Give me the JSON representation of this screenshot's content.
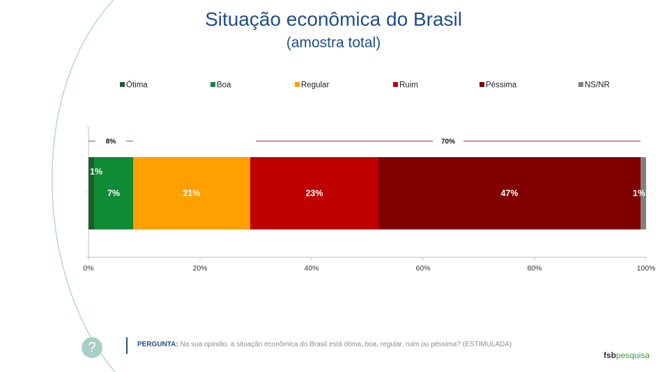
{
  "chart_data": {
    "type": "bar",
    "orientation": "horizontal",
    "stacked": true,
    "title": "Situação econômica do Brasil",
    "subtitle": "(amostra total)",
    "series": [
      {
        "name": "Ótima",
        "value": 1,
        "label": "1%",
        "color": "#1e5c2e"
      },
      {
        "name": "Boa",
        "value": 7,
        "label": "7%",
        "color": "#0f8a35"
      },
      {
        "name": "Regular",
        "value": 21,
        "label": "21%",
        "color": "#ff9f00"
      },
      {
        "name": "Ruim",
        "value": 23,
        "label": "23%",
        "color": "#c00000"
      },
      {
        "name": "Péssima",
        "value": 47,
        "label": "47%",
        "color": "#800000"
      },
      {
        "name": "NS/NR",
        "value": 1,
        "label": "1%",
        "color": "#808080"
      }
    ],
    "xlim": [
      0,
      100
    ],
    "xticks": [
      "0%",
      "20%",
      "40%",
      "60%",
      "80%",
      "100%"
    ],
    "legend_position": "top",
    "groupings": [
      {
        "label": "8%",
        "range": [
          0,
          8
        ],
        "color": "#2f6f6a"
      },
      {
        "label": "70%",
        "range": [
          30,
          99
        ],
        "color": "#9a1f1f"
      }
    ]
  },
  "footer": {
    "question_label": "PERGUNTA:",
    "question_text": "Na sua opinião, a situação econômica do Brasil está ótima, boa, regular, ruim ou péssima? (ESTIMULADA)",
    "help_icon": "?",
    "brand_a": "fsb",
    "brand_b": "pesquisa"
  }
}
